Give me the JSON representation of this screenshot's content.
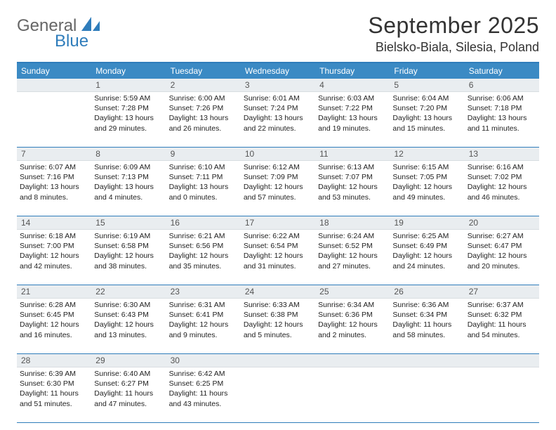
{
  "brand": {
    "name1": "General",
    "name2": "Blue"
  },
  "title": "September 2025",
  "location": "Bielsko-Biala, Silesia, Poland",
  "colors": {
    "accent": "#3b8ac4",
    "accent_border": "#2f7dbb",
    "daynum_bg": "#e9edf0",
    "text": "#222222",
    "bg": "#ffffff"
  },
  "typography": {
    "title_fontsize": 32,
    "location_fontsize": 18,
    "dow_fontsize": 12,
    "cell_fontsize": 10.5
  },
  "dow": [
    "Sunday",
    "Monday",
    "Tuesday",
    "Wednesday",
    "Thursday",
    "Friday",
    "Saturday"
  ],
  "weeks": [
    [
      {
        "day": "",
        "sunrise": "",
        "sunset": "",
        "daylight": ""
      },
      {
        "day": "1",
        "sunrise": "Sunrise: 5:59 AM",
        "sunset": "Sunset: 7:28 PM",
        "daylight": "Daylight: 13 hours and 29 minutes."
      },
      {
        "day": "2",
        "sunrise": "Sunrise: 6:00 AM",
        "sunset": "Sunset: 7:26 PM",
        "daylight": "Daylight: 13 hours and 26 minutes."
      },
      {
        "day": "3",
        "sunrise": "Sunrise: 6:01 AM",
        "sunset": "Sunset: 7:24 PM",
        "daylight": "Daylight: 13 hours and 22 minutes."
      },
      {
        "day": "4",
        "sunrise": "Sunrise: 6:03 AM",
        "sunset": "Sunset: 7:22 PM",
        "daylight": "Daylight: 13 hours and 19 minutes."
      },
      {
        "day": "5",
        "sunrise": "Sunrise: 6:04 AM",
        "sunset": "Sunset: 7:20 PM",
        "daylight": "Daylight: 13 hours and 15 minutes."
      },
      {
        "day": "6",
        "sunrise": "Sunrise: 6:06 AM",
        "sunset": "Sunset: 7:18 PM",
        "daylight": "Daylight: 13 hours and 11 minutes."
      }
    ],
    [
      {
        "day": "7",
        "sunrise": "Sunrise: 6:07 AM",
        "sunset": "Sunset: 7:16 PM",
        "daylight": "Daylight: 13 hours and 8 minutes."
      },
      {
        "day": "8",
        "sunrise": "Sunrise: 6:09 AM",
        "sunset": "Sunset: 7:13 PM",
        "daylight": "Daylight: 13 hours and 4 minutes."
      },
      {
        "day": "9",
        "sunrise": "Sunrise: 6:10 AM",
        "sunset": "Sunset: 7:11 PM",
        "daylight": "Daylight: 13 hours and 0 minutes."
      },
      {
        "day": "10",
        "sunrise": "Sunrise: 6:12 AM",
        "sunset": "Sunset: 7:09 PM",
        "daylight": "Daylight: 12 hours and 57 minutes."
      },
      {
        "day": "11",
        "sunrise": "Sunrise: 6:13 AM",
        "sunset": "Sunset: 7:07 PM",
        "daylight": "Daylight: 12 hours and 53 minutes."
      },
      {
        "day": "12",
        "sunrise": "Sunrise: 6:15 AM",
        "sunset": "Sunset: 7:05 PM",
        "daylight": "Daylight: 12 hours and 49 minutes."
      },
      {
        "day": "13",
        "sunrise": "Sunrise: 6:16 AM",
        "sunset": "Sunset: 7:02 PM",
        "daylight": "Daylight: 12 hours and 46 minutes."
      }
    ],
    [
      {
        "day": "14",
        "sunrise": "Sunrise: 6:18 AM",
        "sunset": "Sunset: 7:00 PM",
        "daylight": "Daylight: 12 hours and 42 minutes."
      },
      {
        "day": "15",
        "sunrise": "Sunrise: 6:19 AM",
        "sunset": "Sunset: 6:58 PM",
        "daylight": "Daylight: 12 hours and 38 minutes."
      },
      {
        "day": "16",
        "sunrise": "Sunrise: 6:21 AM",
        "sunset": "Sunset: 6:56 PM",
        "daylight": "Daylight: 12 hours and 35 minutes."
      },
      {
        "day": "17",
        "sunrise": "Sunrise: 6:22 AM",
        "sunset": "Sunset: 6:54 PM",
        "daylight": "Daylight: 12 hours and 31 minutes."
      },
      {
        "day": "18",
        "sunrise": "Sunrise: 6:24 AM",
        "sunset": "Sunset: 6:52 PM",
        "daylight": "Daylight: 12 hours and 27 minutes."
      },
      {
        "day": "19",
        "sunrise": "Sunrise: 6:25 AM",
        "sunset": "Sunset: 6:49 PM",
        "daylight": "Daylight: 12 hours and 24 minutes."
      },
      {
        "day": "20",
        "sunrise": "Sunrise: 6:27 AM",
        "sunset": "Sunset: 6:47 PM",
        "daylight": "Daylight: 12 hours and 20 minutes."
      }
    ],
    [
      {
        "day": "21",
        "sunrise": "Sunrise: 6:28 AM",
        "sunset": "Sunset: 6:45 PM",
        "daylight": "Daylight: 12 hours and 16 minutes."
      },
      {
        "day": "22",
        "sunrise": "Sunrise: 6:30 AM",
        "sunset": "Sunset: 6:43 PM",
        "daylight": "Daylight: 12 hours and 13 minutes."
      },
      {
        "day": "23",
        "sunrise": "Sunrise: 6:31 AM",
        "sunset": "Sunset: 6:41 PM",
        "daylight": "Daylight: 12 hours and 9 minutes."
      },
      {
        "day": "24",
        "sunrise": "Sunrise: 6:33 AM",
        "sunset": "Sunset: 6:38 PM",
        "daylight": "Daylight: 12 hours and 5 minutes."
      },
      {
        "day": "25",
        "sunrise": "Sunrise: 6:34 AM",
        "sunset": "Sunset: 6:36 PM",
        "daylight": "Daylight: 12 hours and 2 minutes."
      },
      {
        "day": "26",
        "sunrise": "Sunrise: 6:36 AM",
        "sunset": "Sunset: 6:34 PM",
        "daylight": "Daylight: 11 hours and 58 minutes."
      },
      {
        "day": "27",
        "sunrise": "Sunrise: 6:37 AM",
        "sunset": "Sunset: 6:32 PM",
        "daylight": "Daylight: 11 hours and 54 minutes."
      }
    ],
    [
      {
        "day": "28",
        "sunrise": "Sunrise: 6:39 AM",
        "sunset": "Sunset: 6:30 PM",
        "daylight": "Daylight: 11 hours and 51 minutes."
      },
      {
        "day": "29",
        "sunrise": "Sunrise: 6:40 AM",
        "sunset": "Sunset: 6:27 PM",
        "daylight": "Daylight: 11 hours and 47 minutes."
      },
      {
        "day": "30",
        "sunrise": "Sunrise: 6:42 AM",
        "sunset": "Sunset: 6:25 PM",
        "daylight": "Daylight: 11 hours and 43 minutes."
      },
      {
        "day": "",
        "sunrise": "",
        "sunset": "",
        "daylight": ""
      },
      {
        "day": "",
        "sunrise": "",
        "sunset": "",
        "daylight": ""
      },
      {
        "day": "",
        "sunrise": "",
        "sunset": "",
        "daylight": ""
      },
      {
        "day": "",
        "sunrise": "",
        "sunset": "",
        "daylight": ""
      }
    ]
  ]
}
